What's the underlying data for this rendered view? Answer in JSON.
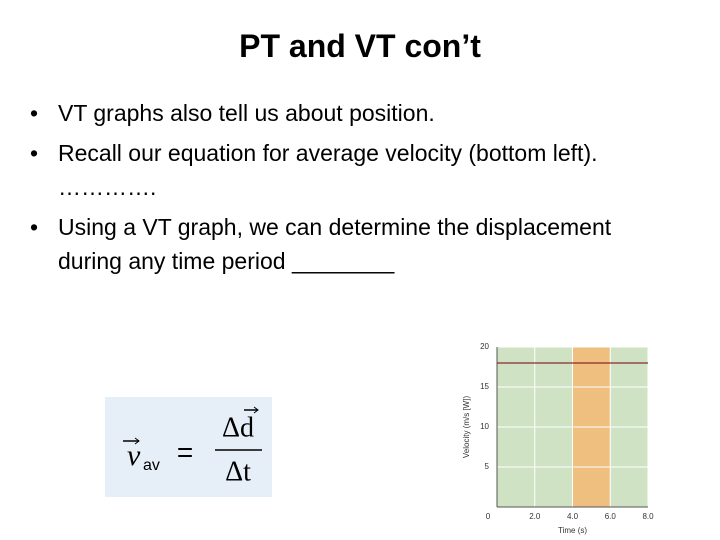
{
  "slide": {
    "title": "PT and VT con’t",
    "bullets": [
      "VT graphs also tell us about position.",
      "Recall our equation for average velocity (bottom left).  ………….",
      "Using a VT graph, we can determine the displacement during any time period ________"
    ],
    "equation": {
      "lhs": "v",
      "subscript": "av",
      "equals": "=",
      "numerator": "Δd",
      "denominator": "Δt"
    }
  },
  "chart_data": {
    "type": "line",
    "xlabel": "Time (s)",
    "ylabel": "Velocity (m/s [W])",
    "xlim": [
      0,
      8
    ],
    "ylim": [
      0,
      20
    ],
    "xticks": [
      {
        "value": 0,
        "label": "0"
      },
      {
        "value": 2,
        "label": "2.0"
      },
      {
        "value": 4,
        "label": "4.0"
      },
      {
        "value": 6,
        "label": "6.0"
      },
      {
        "value": 8,
        "label": "8.0"
      }
    ],
    "yticks": [
      5,
      10,
      15,
      20
    ],
    "highlight": [
      4,
      6
    ],
    "highlight_color": "#eebf7e",
    "background": "#cfe3c4",
    "series": [
      {
        "color": "#8b2a2a",
        "x": [
          0,
          8
        ],
        "values": [
          18,
          18
        ]
      }
    ]
  }
}
